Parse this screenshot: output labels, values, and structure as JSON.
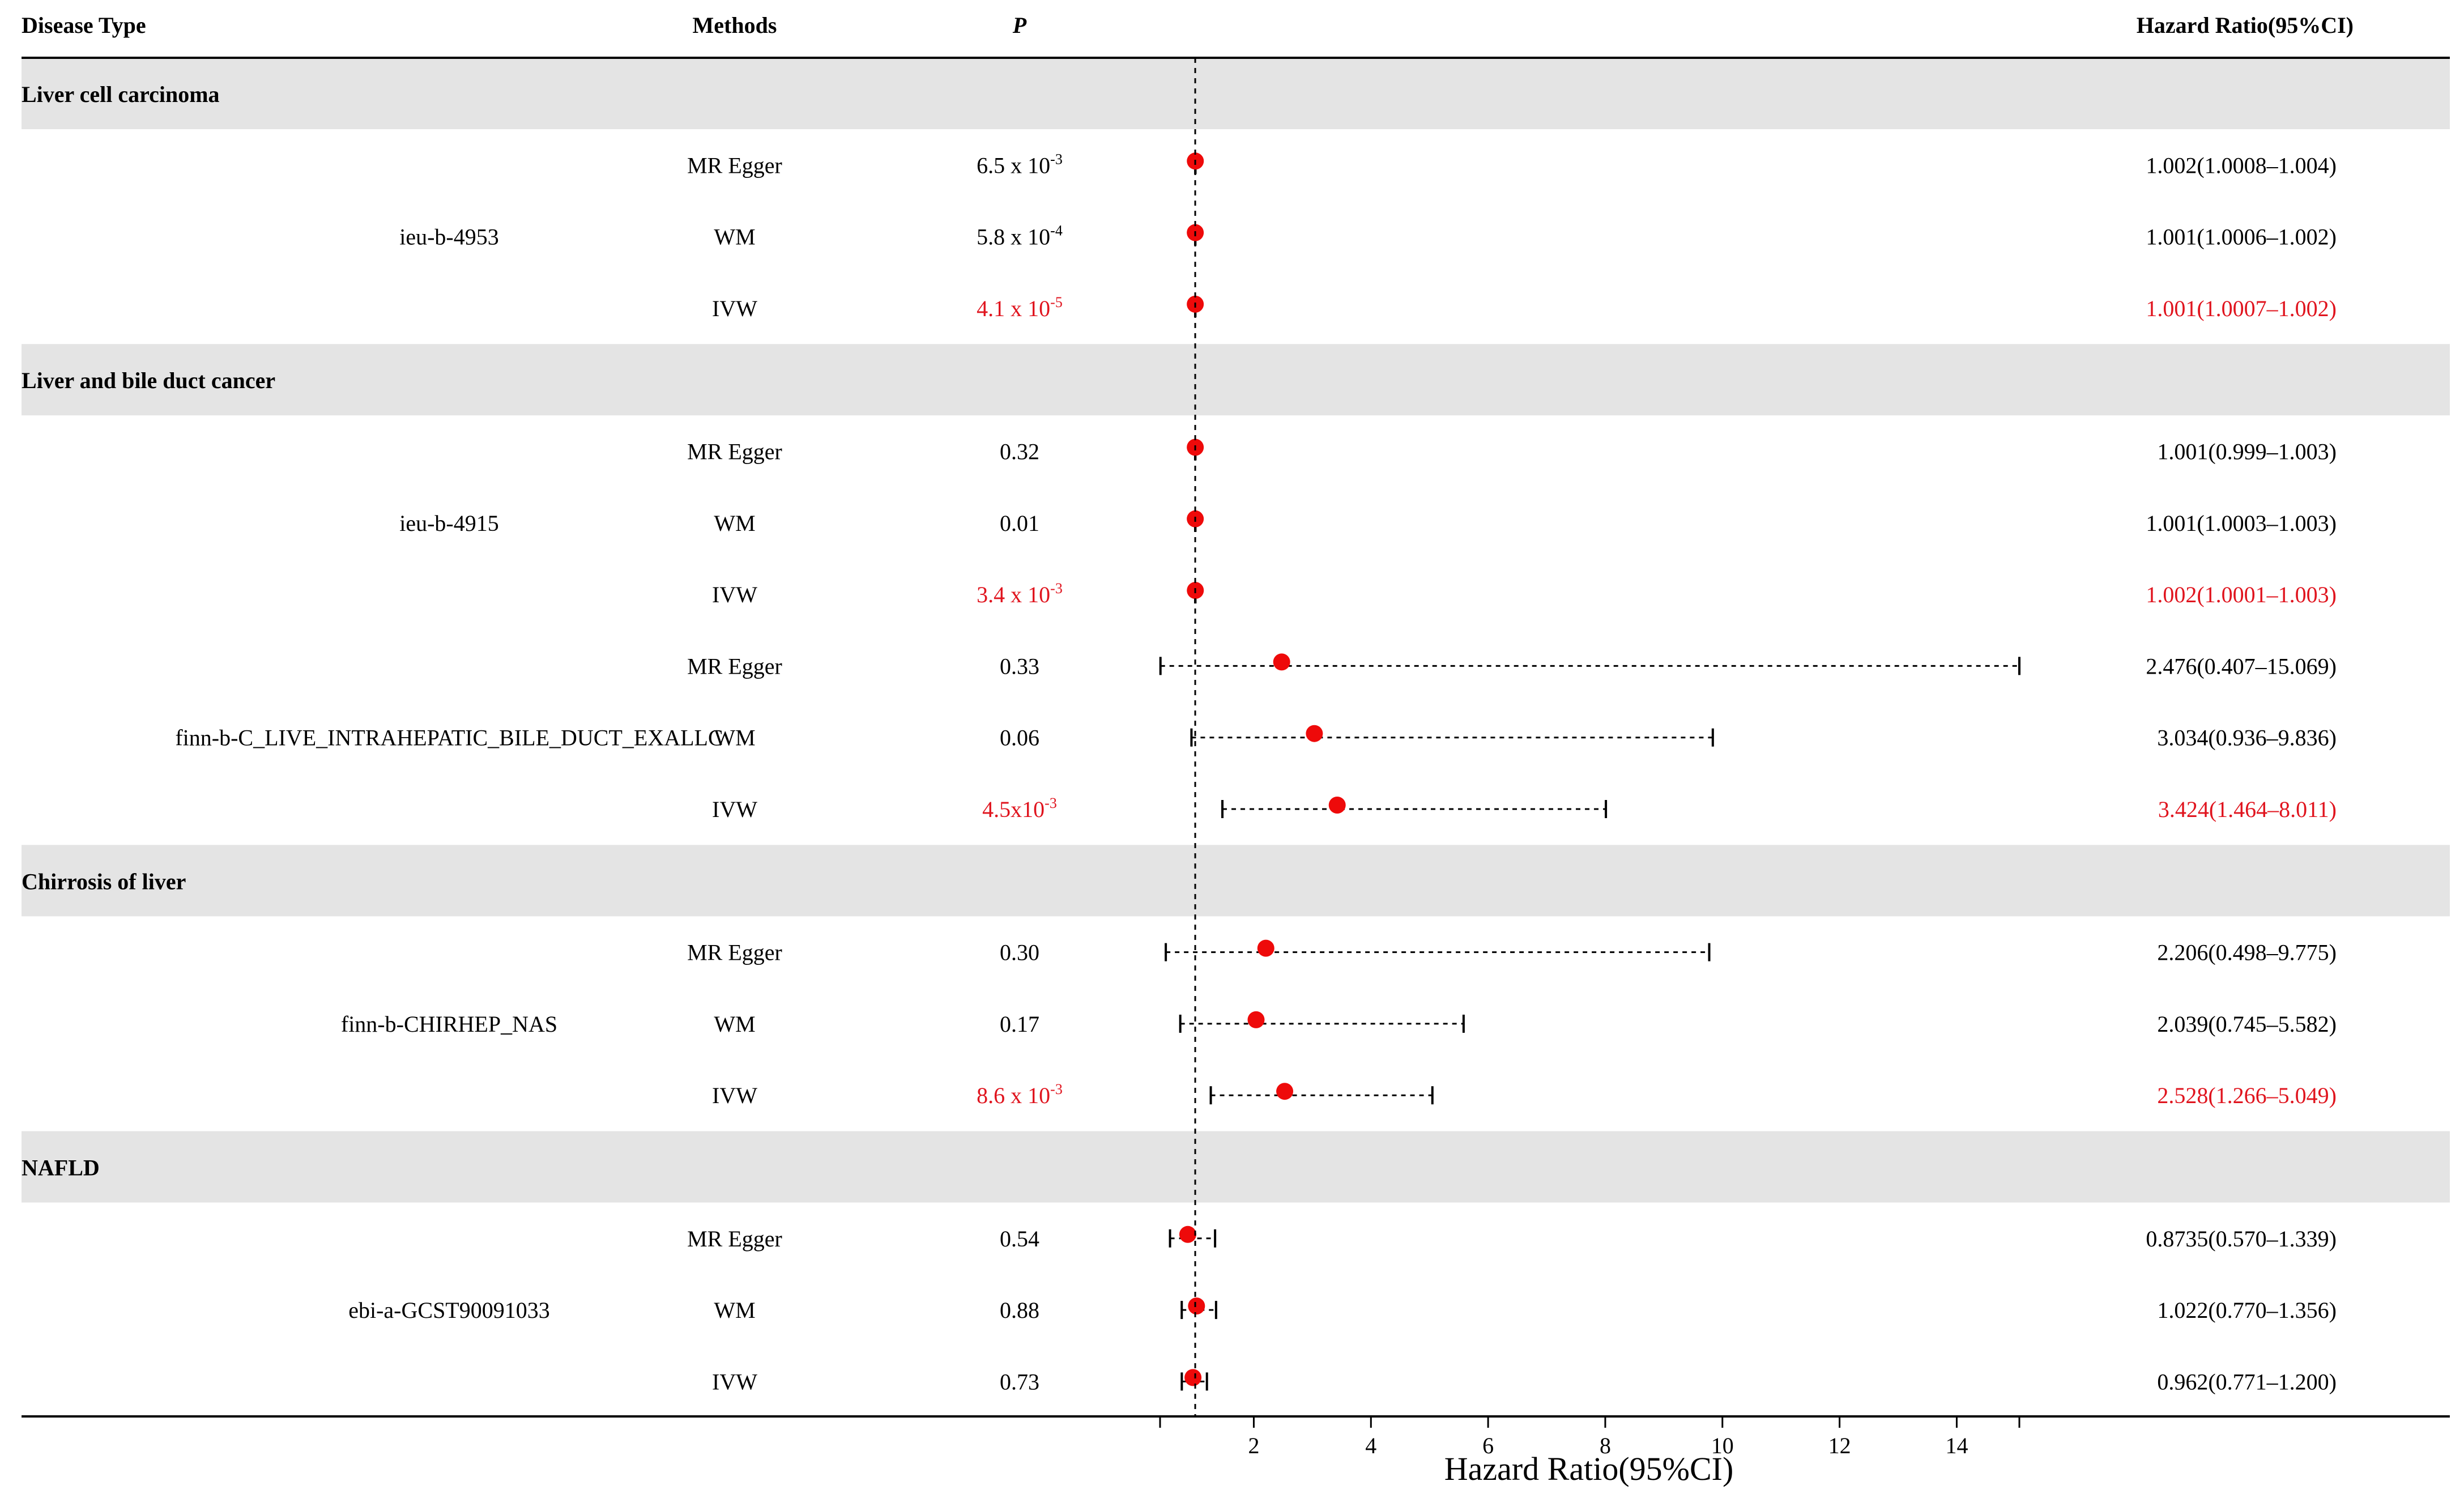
{
  "headers": {
    "disease_type": "Disease Type",
    "methods": "Methods",
    "p": "P",
    "hazard_ratio": "Hazard Ratio(95%CI)"
  },
  "colors": {
    "significant": "#e0141e",
    "point": "#ee0a0a",
    "band": "#e4e4e4",
    "text": "#000000"
  },
  "chart_data": {
    "type": "forest",
    "title": "",
    "xlabel": "Hazard Ratio(95%CI)",
    "xlim": [
      0.4,
      15.069
    ],
    "reference_line": 1,
    "xticks": [
      2,
      4,
      6,
      8,
      10,
      12,
      14
    ],
    "groups": [
      {
        "disease": "Liver cell carcinoma",
        "datasets": [
          {
            "name": "ieu-b-4953",
            "rows": [
              {
                "method": "MR Egger",
                "p_base": "6.5 x 10",
                "p_exp": "-3",
                "hr": 1.002,
                "lo": 1.0008,
                "hi": 1.004,
                "hr_text": "1.002(1.0008–1.004)",
                "significant": false
              },
              {
                "method": "WM",
                "p_base": "5.8 x 10",
                "p_exp": "-4",
                "hr": 1.001,
                "lo": 1.0006,
                "hi": 1.002,
                "hr_text": "1.001(1.0006–1.002)",
                "significant": false
              },
              {
                "method": "IVW",
                "p_base": "4.1 x 10",
                "p_exp": "-5",
                "hr": 1.001,
                "lo": 1.0007,
                "hi": 1.002,
                "hr_text": "1.001(1.0007–1.002)",
                "significant": true
              }
            ]
          }
        ]
      },
      {
        "disease": "Liver and bile duct cancer",
        "datasets": [
          {
            "name": "ieu-b-4915",
            "rows": [
              {
                "method": "MR Egger",
                "p_base": "0.32",
                "p_exp": "",
                "hr": 1.001,
                "lo": 0.999,
                "hi": 1.003,
                "hr_text": "1.001(0.999–1.003)",
                "significant": false
              },
              {
                "method": "WM",
                "p_base": "0.01",
                "p_exp": "",
                "hr": 1.001,
                "lo": 1.0003,
                "hi": 1.003,
                "hr_text": "1.001(1.0003–1.003)",
                "significant": false
              },
              {
                "method": "IVW",
                "p_base": "3.4 x 10",
                "p_exp": "-3",
                "hr": 1.002,
                "lo": 1.0001,
                "hi": 1.003,
                "hr_text": "1.002(1.0001–1.003)",
                "significant": true
              }
            ]
          },
          {
            "name": "finn-b-C_LIVE_INTRAHEPATIC_BILE_DUCT_EXALLC",
            "rows": [
              {
                "method": "MR Egger",
                "p_base": "0.33",
                "p_exp": "",
                "hr": 2.476,
                "lo": 0.407,
                "hi": 15.069,
                "hr_text": "2.476(0.407–15.069)",
                "significant": false
              },
              {
                "method": "WM",
                "p_base": "0.06",
                "p_exp": "",
                "hr": 3.034,
                "lo": 0.936,
                "hi": 9.836,
                "hr_text": "3.034(0.936–9.836)",
                "significant": false
              },
              {
                "method": "IVW",
                "p_base": "4.5x10",
                "p_exp": "-3",
                "hr": 3.424,
                "lo": 1.464,
                "hi": 8.011,
                "hr_text": "3.424(1.464–8.011)",
                "significant": true
              }
            ]
          }
        ]
      },
      {
        "disease": "Chirrosis of liver",
        "datasets": [
          {
            "name": "finn-b-CHIRHEP_NAS",
            "rows": [
              {
                "method": "MR Egger",
                "p_base": "0.30",
                "p_exp": "",
                "hr": 2.206,
                "lo": 0.498,
                "hi": 9.775,
                "hr_text": "2.206(0.498–9.775)",
                "significant": false
              },
              {
                "method": "WM",
                "p_base": "0.17",
                "p_exp": "",
                "hr": 2.039,
                "lo": 0.745,
                "hi": 5.582,
                "hr_text": "2.039(0.745–5.582)",
                "significant": false
              },
              {
                "method": "IVW",
                "p_base": "8.6 x 10",
                "p_exp": "-3",
                "hr": 2.528,
                "lo": 1.266,
                "hi": 5.049,
                "hr_text": "2.528(1.266–5.049)",
                "significant": true
              }
            ]
          }
        ]
      },
      {
        "disease": "NAFLD",
        "datasets": [
          {
            "name": "ebi-a-GCST90091033",
            "rows": [
              {
                "method": "MR Egger",
                "p_base": "0.54",
                "p_exp": "",
                "hr": 0.8735,
                "lo": 0.57,
                "hi": 1.339,
                "hr_text": "0.8735(0.570–1.339)",
                "significant": false
              },
              {
                "method": "WM",
                "p_base": "0.88",
                "p_exp": "",
                "hr": 1.022,
                "lo": 0.77,
                "hi": 1.356,
                "hr_text": "1.022(0.770–1.356)",
                "significant": false
              },
              {
                "method": "IVW",
                "p_base": "0.73",
                "p_exp": "",
                "hr": 0.962,
                "lo": 0.771,
                "hi": 1.2,
                "hr_text": "0.962(0.771–1.200)",
                "significant": false
              }
            ]
          }
        ]
      }
    ]
  }
}
